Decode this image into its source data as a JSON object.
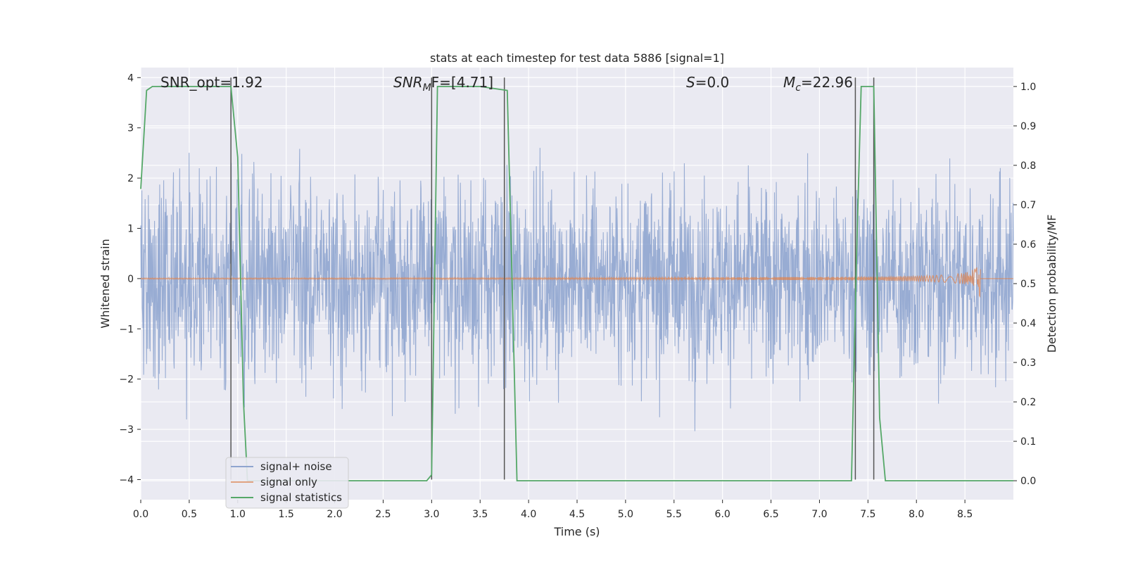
{
  "chart_data": {
    "type": "line",
    "title": "stats at each timestep for test data 5886 [signal=1]",
    "xlabel": "Time (s)",
    "ylabel_left": "Whitened strain",
    "ylabel_right": "Detection probability/MF",
    "xlim": [
      0.0,
      9.0
    ],
    "ylim_left": [
      -4.4,
      4.2
    ],
    "ylim_right": [
      -0.048,
      1.048
    ],
    "x_ticks": [
      "0.0",
      "0.5",
      "1.0",
      "1.5",
      "2.0",
      "2.5",
      "3.0",
      "3.5",
      "4.0",
      "4.5",
      "5.0",
      "5.5",
      "6.0",
      "6.5",
      "7.0",
      "7.5",
      "8.0",
      "8.5"
    ],
    "x_tick_values": [
      0.0,
      0.5,
      1.0,
      1.5,
      2.0,
      2.5,
      3.0,
      3.5,
      4.0,
      4.5,
      5.0,
      5.5,
      6.0,
      6.5,
      7.0,
      7.5,
      8.0,
      8.5
    ],
    "yleft_ticks": [
      "−4",
      "−3",
      "−2",
      "−1",
      "0",
      "1",
      "2",
      "3",
      "4"
    ],
    "yleft_tick_values": [
      -4,
      -3,
      -2,
      -1,
      0,
      1,
      2,
      3,
      4
    ],
    "yright_ticks": [
      "0.0",
      "0.1",
      "0.2",
      "0.3",
      "0.4",
      "0.5",
      "0.6",
      "0.7",
      "0.8",
      "0.9",
      "1.0"
    ],
    "yright_tick_values": [
      0.0,
      0.1,
      0.2,
      0.3,
      0.4,
      0.5,
      0.6,
      0.7,
      0.8,
      0.9,
      1.0
    ],
    "grid": true,
    "legend_placement": "lower-left",
    "annotations": {
      "snr_opt": "SNR_opt=1.92",
      "snr_mf_base": "SNR",
      "snr_mf_sub": "M",
      "snr_mf_rest": "F=[4.71]",
      "s_stat_var": "S",
      "s_stat_rest": "=0.0",
      "mc_base": "M",
      "mc_sub": "c",
      "mc_rest": "=22.96"
    },
    "series": [
      {
        "name": "signal+ noise",
        "color": "#8fa5cf",
        "description_envelope": {
          "x": [
            0.0,
            9.0
          ],
          "typical_range": [
            -1.6,
            1.5
          ],
          "max_peak": 3.5,
          "min_trough": -3.8
        }
      },
      {
        "name": "signal only",
        "color": "#dd8452",
        "chirp": {
          "x_start": 0.0,
          "x_end": 8.66,
          "amp_end": 0.45
        }
      },
      {
        "name": "signal statistics",
        "color": "#55a868",
        "x": [
          0.0,
          0.06,
          0.12,
          0.5,
          0.93,
          1.0,
          1.06,
          1.1,
          2.0,
          2.95,
          3.0,
          3.06,
          3.5,
          3.78,
          3.82,
          3.88,
          5.0,
          7.33,
          7.38,
          7.43,
          7.56,
          7.62,
          7.68,
          9.0
        ],
        "y": [
          0.74,
          0.99,
          1.0,
          1.0,
          1.0,
          0.82,
          0.2,
          0.0,
          0.0,
          0.0,
          0.015,
          1.0,
          1.0,
          0.99,
          0.6,
          0.0,
          0.0,
          0.0,
          0.55,
          1.0,
          1.0,
          0.16,
          0.0,
          0.0
        ]
      },
      {
        "name": "markers",
        "color": "#555555",
        "x": [
          0.93,
          3.0,
          3.75,
          7.37,
          7.56
        ]
      }
    ],
    "legend": [
      "signal+ noise",
      "signal only",
      "signal statistics"
    ]
  }
}
